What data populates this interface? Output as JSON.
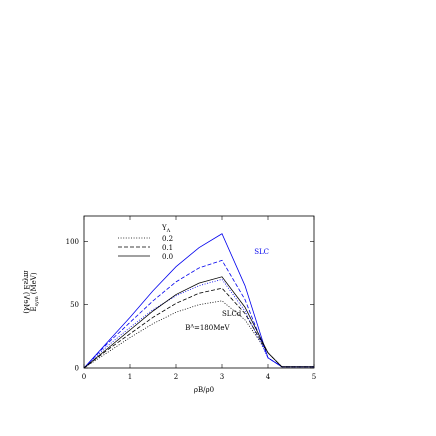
{
  "chart_data": {
    "type": "line",
    "title": "",
    "xlabel": "ρB/ρ0",
    "ylabel": "Esym (MeV)",
    "ylabel_main": "E",
    "ylabel_sub": "sym",
    "ylabel_unit": "(MeV)",
    "mirrored_ylabel": "(MeV) Esym",
    "xlim": [
      0,
      5
    ],
    "ylim": [
      0,
      120
    ],
    "xticks": [
      0,
      1,
      2,
      3,
      4,
      5
    ],
    "xtick_labels": [
      "0",
      "1",
      "2",
      "3",
      "4",
      "5"
    ],
    "yticks": [
      0,
      50,
      100
    ],
    "ytick_labels": [
      "0",
      "50",
      "100"
    ],
    "grid": false,
    "legend": {
      "placement": "top-left",
      "title": "YΛ",
      "title_main": "Y",
      "title_sub": "Λ",
      "entries": [
        {
          "label": "0.2",
          "style": "dotted"
        },
        {
          "label": "0.1",
          "style": "dashed"
        },
        {
          "label": "0.0",
          "style": "solid"
        }
      ]
    },
    "annotations": [
      {
        "text": "SLC",
        "color": "#0000ee",
        "x": 3.7,
        "y": 90
      },
      {
        "text": "SLCd",
        "color": "#000000",
        "x": 3.0,
        "y": 41
      },
      {
        "text": "BΛ=180MeV",
        "main": "B",
        "sup": "Λ",
        "rest": "=180MeV",
        "color": "#000000",
        "x": 2.2,
        "y": 30
      }
    ],
    "series": [
      {
        "group": "SLC",
        "label": "0.0",
        "color": "#0000ee",
        "style": "solid",
        "x": [
          0,
          0.5,
          1,
          1.5,
          2,
          2.5,
          3,
          3.5,
          4,
          4.3,
          5
        ],
        "y": [
          0,
          20,
          40,
          61,
          80,
          95,
          106,
          65,
          8,
          1,
          1
        ]
      },
      {
        "group": "SLC",
        "label": "0.1",
        "color": "#0000ee",
        "style": "dashed",
        "x": [
          0,
          0.5,
          1,
          1.5,
          2,
          2.5,
          3,
          3.5,
          4,
          4.3,
          5
        ],
        "y": [
          0,
          19,
          36,
          53,
          68,
          79,
          85,
          54,
          8,
          1,
          1
        ]
      },
      {
        "group": "SLC",
        "label": "0.2",
        "color": "#0000ee",
        "style": "dotted",
        "x": [
          0,
          0.5,
          1,
          1.5,
          2,
          2.5,
          3,
          3.5,
          4,
          4.3,
          5
        ],
        "y": [
          0,
          17,
          32,
          46,
          57,
          65,
          70,
          45,
          8,
          1,
          1
        ]
      },
      {
        "group": "SLCd",
        "label": "0.0",
        "color": "#000000",
        "style": "solid",
        "x": [
          0,
          0.5,
          1,
          1.5,
          2,
          2.5,
          3,
          3.5,
          4,
          4.3,
          5
        ],
        "y": [
          0,
          15,
          30,
          45,
          58,
          67,
          72,
          48,
          12,
          1,
          1
        ]
      },
      {
        "group": "SLCd",
        "label": "0.1",
        "color": "#000000",
        "style": "dashed",
        "x": [
          0,
          0.5,
          1,
          1.5,
          2,
          2.5,
          3,
          3.5,
          4,
          4.3,
          5
        ],
        "y": [
          0,
          14,
          27,
          40,
          51,
          59,
          63,
          43,
          12,
          1,
          1
        ]
      },
      {
        "group": "SLCd",
        "label": "0.2",
        "color": "#000000",
        "style": "dotted",
        "x": [
          0,
          0.5,
          1,
          1.5,
          2,
          2.5,
          3,
          3.5,
          4,
          4.3,
          5
        ],
        "y": [
          0,
          12,
          24,
          35,
          44,
          50,
          53,
          38,
          12,
          1,
          1
        ]
      }
    ]
  }
}
